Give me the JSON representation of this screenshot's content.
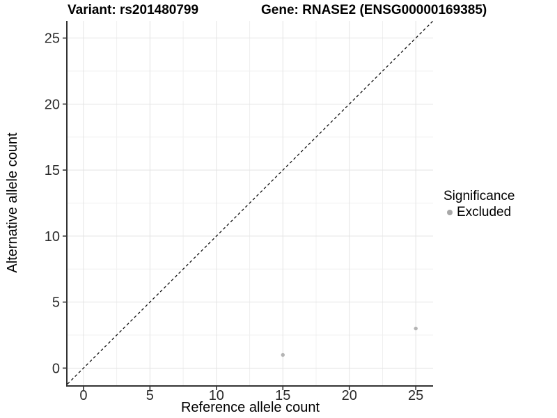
{
  "chart_data": {
    "type": "scatter",
    "title_variant": "Variant: rs201480799",
    "title_gene": "Gene: RNASE2 (ENSG00000169385)",
    "xlabel": "Reference allele count",
    "ylabel": "Alternative allele count",
    "xlim": [
      -1.2,
      26.3
    ],
    "ylim": [
      -1.3,
      26.3
    ],
    "xticks": [
      0,
      5,
      10,
      15,
      20,
      25
    ],
    "yticks": [
      0,
      5,
      10,
      15,
      20,
      25
    ],
    "x_minor_ticks": [
      2.5,
      7.5,
      12.5,
      17.5,
      22.5
    ],
    "y_minor_ticks": [
      2.5,
      7.5,
      12.5,
      17.5,
      22.5
    ],
    "grid": "major-and-minor",
    "legend_position": "right",
    "identity_line": {
      "slope": 1,
      "intercept": 0,
      "style": "dashed",
      "color": "#111111"
    },
    "series": [
      {
        "name": "Excluded",
        "color": "#b4b4b4",
        "points": [
          {
            "x": 15,
            "y": 1
          },
          {
            "x": 25,
            "y": 3
          }
        ]
      }
    ],
    "legend": {
      "title": "Significance",
      "items": [
        {
          "label": "Excluded",
          "color": "#a8a8a8"
        }
      ]
    },
    "colors": {
      "grid_major": "#e3e3e3",
      "grid_minor": "#f0f0f0",
      "axis_line": "#333333",
      "tick_mark": "#333333",
      "tick_text": "#2b2b2b",
      "background": "#ffffff"
    }
  }
}
